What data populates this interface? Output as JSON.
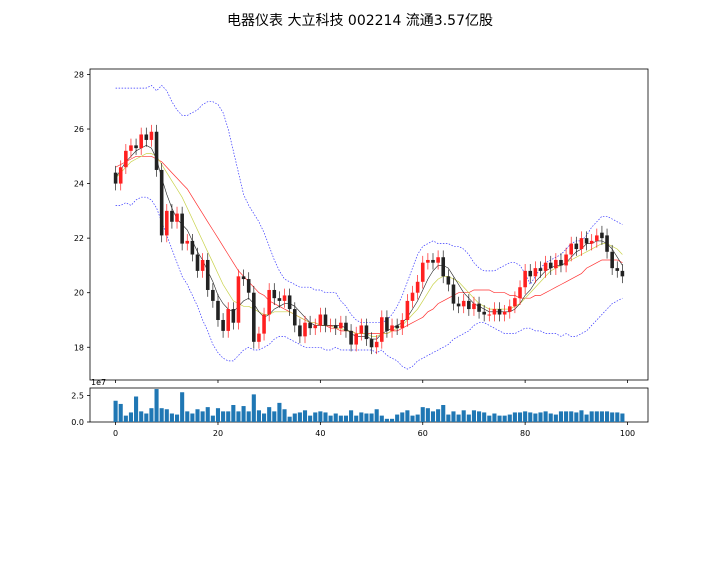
{
  "title": "电器仪表 大立科技 002214 流通3.57亿股",
  "colors": {
    "up": "#ff2020",
    "down": "#222222",
    "ma_short": "#222222",
    "ma_mid": "#c8d24a",
    "ma_long": "#ff3030",
    "boll": "#3535ff",
    "volume": "#1f77b4"
  },
  "chart_data": [
    {
      "type": "candlestick",
      "title": "",
      "xlim": [
        -5,
        104
      ],
      "ylim": [
        16.8,
        28.2
      ],
      "yticks": [
        18,
        20,
        22,
        24,
        26,
        28
      ],
      "xticks": [
        0,
        20,
        40,
        60,
        80,
        100
      ],
      "series_closes": [
        24.0,
        24.6,
        25.2,
        25.4,
        25.3,
        25.8,
        25.6,
        25.9,
        24.5,
        22.1,
        23.0,
        22.6,
        22.9,
        21.8,
        21.9,
        21.4,
        20.8,
        21.2,
        20.1,
        19.7,
        19.0,
        18.6,
        19.4,
        18.9,
        20.6,
        20.5,
        20.0,
        18.2,
        18.5,
        19.2,
        20.1,
        19.8,
        19.7,
        19.9,
        19.4,
        18.8,
        18.4,
        18.9,
        18.7,
        18.8,
        19.2,
        18.8,
        18.8,
        18.7,
        18.9,
        18.6,
        18.1,
        18.5,
        18.8,
        18.3,
        18.0,
        18.2,
        19.1,
        18.6,
        18.8,
        18.7,
        19.0,
        19.7,
        20.0,
        20.4,
        21.1,
        21.2,
        21.1,
        21.3,
        20.6,
        20.3,
        19.6,
        19.5,
        19.7,
        19.4,
        19.6,
        19.3,
        19.2,
        19.2,
        19.4,
        19.2,
        19.3,
        19.5,
        19.8,
        20.2,
        20.8,
        20.6,
        20.9,
        20.8,
        21.1,
        20.9,
        21.2,
        21.0,
        21.4,
        21.8,
        21.6,
        22.0,
        21.8,
        21.9,
        22.1,
        22.0,
        21.5,
        20.9,
        20.8,
        20.6
      ],
      "series_opens": [
        24.4,
        24.0,
        24.6,
        25.2,
        25.4,
        25.3,
        25.8,
        25.6,
        25.9,
        24.5,
        22.1,
        23.0,
        22.6,
        22.9,
        21.8,
        21.9,
        21.4,
        20.8,
        21.2,
        20.1,
        19.7,
        19.0,
        18.6,
        19.4,
        18.9,
        20.6,
        20.5,
        20.0,
        18.2,
        18.5,
        19.2,
        20.1,
        19.8,
        19.7,
        19.9,
        19.4,
        18.8,
        18.4,
        18.9,
        18.7,
        18.8,
        19.2,
        18.8,
        18.8,
        18.7,
        18.9,
        18.6,
        18.1,
        18.5,
        18.8,
        18.3,
        18.0,
        18.2,
        19.1,
        18.6,
        18.8,
        18.7,
        19.0,
        19.7,
        20.0,
        20.4,
        21.1,
        21.2,
        21.1,
        21.3,
        20.6,
        20.3,
        19.6,
        19.5,
        19.7,
        19.4,
        19.6,
        19.3,
        19.2,
        19.2,
        19.4,
        19.2,
        19.3,
        19.5,
        19.8,
        20.2,
        20.8,
        20.6,
        20.9,
        20.8,
        21.1,
        20.9,
        21.2,
        21.0,
        21.4,
        21.8,
        21.6,
        22.0,
        21.8,
        21.9,
        22.2,
        22.1,
        21.5,
        20.9,
        20.8
      ],
      "ma_short": [
        24.2,
        24.5,
        24.8,
        25.0,
        25.2,
        25.3,
        25.4,
        25.3,
        24.9,
        24.2,
        23.6,
        23.1,
        22.7,
        22.5,
        22.3,
        21.9,
        21.5,
        21.2,
        20.8,
        20.4,
        19.9,
        19.6,
        19.4,
        19.3,
        19.5,
        19.7,
        19.8,
        19.6,
        19.3,
        19.1,
        19.2,
        19.4,
        19.5,
        19.6,
        19.6,
        19.5,
        19.3,
        19.1,
        18.9,
        18.8,
        18.8,
        18.8,
        18.8,
        18.8,
        18.8,
        18.7,
        18.5,
        18.4,
        18.4,
        18.4,
        18.3,
        18.3,
        18.5,
        18.6,
        18.7,
        18.8,
        18.9,
        19.1,
        19.4,
        19.7,
        20.1,
        20.5,
        20.8,
        21.0,
        21.0,
        20.9,
        20.6,
        20.3,
        20.0,
        19.8,
        19.6,
        19.5,
        19.4,
        19.3,
        19.3,
        19.3,
        19.3,
        19.3,
        19.4,
        19.6,
        19.9,
        20.1,
        20.4,
        20.6,
        20.8,
        20.9,
        21.0,
        21.0,
        21.1,
        21.3,
        21.5,
        21.6,
        21.8,
        21.8,
        21.9,
        21.9,
        21.8,
        21.6,
        21.3,
        21.0
      ],
      "ma_mid": [
        24.2,
        24.4,
        24.6,
        24.8,
        24.9,
        25.0,
        25.1,
        25.1,
        25.0,
        24.7,
        24.4,
        24.1,
        23.8,
        23.5,
        23.1,
        22.7,
        22.3,
        21.9,
        21.5,
        21.1,
        20.7,
        20.3,
        20.0,
        19.7,
        19.6,
        19.5,
        19.5,
        19.4,
        19.3,
        19.2,
        19.2,
        19.3,
        19.3,
        19.3,
        19.3,
        19.2,
        19.1,
        19.0,
        18.9,
        18.9,
        18.8,
        18.8,
        18.8,
        18.7,
        18.7,
        18.6,
        18.6,
        18.5,
        18.5,
        18.5,
        18.4,
        18.4,
        18.5,
        18.5,
        18.6,
        18.7,
        18.8,
        19.0,
        19.2,
        19.4,
        19.7,
        20.0,
        20.3,
        20.5,
        20.6,
        20.6,
        20.5,
        20.4,
        20.2,
        20.0,
        19.8,
        19.6,
        19.5,
        19.4,
        19.4,
        19.4,
        19.4,
        19.4,
        19.5,
        19.6,
        19.8,
        20.0,
        20.2,
        20.4,
        20.6,
        20.8,
        20.9,
        21.0,
        21.1,
        21.2,
        21.3,
        21.4,
        21.5,
        21.6,
        21.7,
        21.8,
        21.8,
        21.7,
        21.6,
        21.4
      ],
      "ma_long": [
        24.6,
        24.7,
        24.8,
        24.9,
        25.0,
        25.0,
        25.0,
        25.0,
        24.9,
        24.8,
        24.6,
        24.4,
        24.2,
        24.0,
        23.8,
        23.5,
        23.2,
        22.9,
        22.6,
        22.3,
        22.0,
        21.7,
        21.4,
        21.1,
        20.8,
        20.6,
        20.4,
        20.2,
        20.0,
        19.9,
        19.7,
        19.6,
        19.5,
        19.4,
        19.3,
        19.2,
        19.1,
        19.0,
        18.9,
        18.9,
        18.8,
        18.8,
        18.7,
        18.7,
        18.6,
        18.6,
        18.6,
        18.5,
        18.5,
        18.5,
        18.5,
        18.5,
        18.5,
        18.5,
        18.6,
        18.6,
        18.7,
        18.8,
        18.9,
        19.0,
        19.1,
        19.3,
        19.4,
        19.6,
        19.7,
        19.8,
        19.9,
        20.0,
        20.0,
        20.0,
        20.1,
        20.1,
        20.1,
        20.1,
        20.0,
        20.0,
        20.0,
        19.9,
        19.9,
        19.8,
        19.8,
        19.8,
        19.9,
        19.9,
        20.0,
        20.1,
        20.2,
        20.3,
        20.4,
        20.5,
        20.6,
        20.7,
        20.9,
        21.0,
        21.1,
        21.2,
        21.2,
        21.2,
        21.2,
        21.1
      ],
      "boll_upper": [
        27.5,
        27.5,
        27.5,
        27.5,
        27.5,
        27.5,
        27.5,
        27.6,
        27.4,
        27.6,
        27.4,
        27.0,
        26.7,
        26.5,
        26.5,
        26.6,
        26.7,
        26.9,
        27.0,
        27.0,
        26.9,
        26.6,
        26.0,
        25.2,
        24.4,
        23.6,
        23.2,
        22.9,
        22.6,
        22.2,
        21.7,
        21.2,
        20.8,
        20.5,
        20.4,
        20.3,
        20.2,
        20.2,
        20.2,
        20.1,
        20.1,
        20.0,
        20.0,
        20.0,
        19.7,
        19.5,
        19.2,
        19.0,
        18.9,
        18.9,
        18.9,
        18.9,
        18.9,
        19.0,
        19.2,
        19.5,
        19.9,
        20.4,
        20.9,
        21.4,
        21.7,
        21.8,
        21.9,
        21.8,
        21.8,
        21.8,
        21.7,
        21.7,
        21.6,
        21.4,
        21.1,
        20.9,
        20.8,
        20.8,
        20.8,
        20.9,
        21.0,
        21.1,
        21.1,
        21.0,
        20.7,
        20.3,
        20.6,
        20.9,
        21.1,
        21.2,
        21.3,
        21.4,
        21.6,
        21.8,
        21.9,
        21.9,
        22.1,
        22.4,
        22.6,
        22.8,
        22.8,
        22.7,
        22.6,
        22.5
      ],
      "boll_lower": [
        23.2,
        23.2,
        23.3,
        23.2,
        23.4,
        23.5,
        23.5,
        23.4,
        23.1,
        22.6,
        22.1,
        21.6,
        21.1,
        20.6,
        20.3,
        19.9,
        19.5,
        19.0,
        18.6,
        18.1,
        17.8,
        17.6,
        17.5,
        17.5,
        17.7,
        17.9,
        18.0,
        17.9,
        17.9,
        18.0,
        18.1,
        18.3,
        18.4,
        18.4,
        18.3,
        18.2,
        18.1,
        18.0,
        18.0,
        18.0,
        18.0,
        17.9,
        17.9,
        18.0,
        17.9,
        17.9,
        17.9,
        17.9,
        17.9,
        17.9,
        17.9,
        17.8,
        17.9,
        17.7,
        17.6,
        17.5,
        17.3,
        17.2,
        17.3,
        17.5,
        17.6,
        17.7,
        17.8,
        17.9,
        18.0,
        18.1,
        18.3,
        18.4,
        18.5,
        18.6,
        18.8,
        18.9,
        18.9,
        18.8,
        18.7,
        18.6,
        18.5,
        18.5,
        18.5,
        18.6,
        18.7,
        18.7,
        18.6,
        18.6,
        18.5,
        18.5,
        18.5,
        18.4,
        18.5,
        18.4,
        18.4,
        18.5,
        18.6,
        18.8,
        19.0,
        19.2,
        19.4,
        19.6,
        19.7,
        19.8
      ]
    },
    {
      "type": "bar",
      "title": "",
      "ylabel": "",
      "offset_label": "1e7",
      "yticks": [
        "0.0",
        "2.5"
      ],
      "ylim": [
        0,
        3.2
      ],
      "xticks": [
        0,
        20,
        40,
        60,
        80,
        100
      ],
      "values": [
        2.0,
        1.7,
        0.6,
        0.9,
        2.4,
        1.0,
        0.8,
        1.3,
        3.1,
        1.3,
        1.2,
        0.8,
        0.7,
        2.8,
        1.0,
        0.8,
        1.2,
        1.0,
        1.4,
        0.6,
        1.3,
        1.0,
        1.0,
        1.6,
        1.0,
        1.5,
        1.0,
        2.6,
        1.1,
        0.8,
        1.4,
        1.0,
        1.8,
        1.2,
        0.5,
        0.8,
        0.9,
        1.1,
        0.6,
        0.9,
        1.0,
        0.9,
        0.6,
        0.8,
        0.6,
        0.6,
        1.1,
        0.6,
        0.9,
        0.8,
        0.8,
        1.2,
        0.6,
        0.3,
        0.3,
        0.7,
        0.9,
        1.1,
        0.6,
        0.7,
        1.4,
        1.3,
        1.0,
        1.2,
        1.6,
        0.7,
        1.0,
        0.7,
        1.1,
        0.7,
        1.1,
        1.0,
        0.9,
        0.6,
        0.8,
        0.6,
        0.6,
        0.7,
        0.9,
        0.9,
        1.0,
        0.9,
        0.8,
        0.9,
        1.0,
        0.8,
        0.7,
        1.0,
        1.0,
        1.0,
        0.9,
        1.1,
        0.7,
        1.0,
        1.0,
        1.0,
        1.0,
        0.9,
        0.9,
        0.8
      ]
    }
  ]
}
